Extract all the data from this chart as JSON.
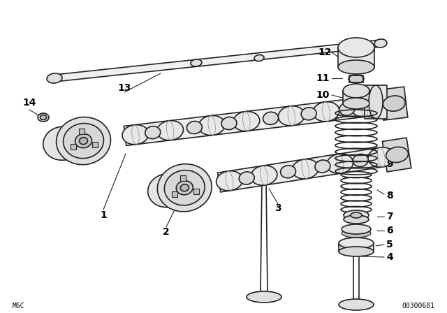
{
  "bg_color": "#ffffff",
  "line_color": "#222222",
  "text_color": "#000000",
  "fig_width": 6.4,
  "fig_height": 4.48,
  "dpi": 100,
  "bottom_left_text": "M6C",
  "bottom_right_text": "00300681"
}
